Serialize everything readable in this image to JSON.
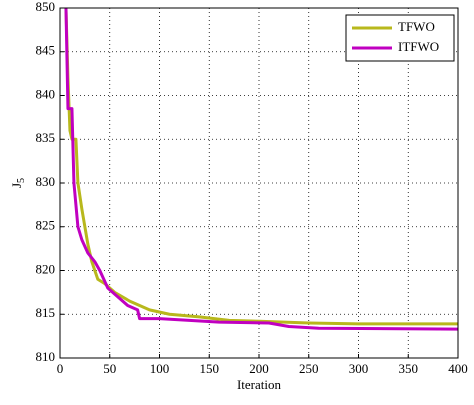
{
  "chart_data": {
    "type": "line",
    "xlabel": "Iteration",
    "ylabel": {
      "text": "J",
      "subscript": "5"
    },
    "xlim": [
      0,
      400
    ],
    "xticks": [
      0,
      50,
      100,
      150,
      200,
      250,
      300,
      350,
      400
    ],
    "ylim": [
      810,
      850
    ],
    "yticks": [
      810,
      815,
      820,
      825,
      830,
      835,
      840,
      845,
      850
    ],
    "grid": true,
    "legend": "upper right",
    "series": [
      {
        "name": "TFWO",
        "color": "#b8b81c",
        "x": [
          6,
          8,
          10,
          12,
          16,
          18,
          22,
          25,
          28,
          32,
          38,
          45,
          55,
          70,
          90,
          110,
          140,
          170,
          200,
          250,
          300,
          400
        ],
        "values": [
          850,
          842,
          836,
          835,
          835,
          830,
          827,
          825,
          823,
          821,
          819,
          818.5,
          817.5,
          816.5,
          815.5,
          815,
          814.7,
          814.3,
          814.2,
          814,
          813.9,
          813.9
        ]
      },
      {
        "name": "ITFWO",
        "color": "#c000c0",
        "x": [
          6,
          8,
          12,
          14,
          18,
          22,
          28,
          35,
          40,
          48,
          58,
          68,
          78,
          80,
          100,
          130,
          160,
          210,
          230,
          260,
          400
        ],
        "values": [
          850,
          838.5,
          838.5,
          830,
          825,
          823.5,
          822,
          821,
          820,
          818,
          817,
          816,
          815.5,
          814.5,
          814.5,
          814.3,
          814.1,
          814,
          813.6,
          813.4,
          813.3
        ]
      }
    ]
  }
}
